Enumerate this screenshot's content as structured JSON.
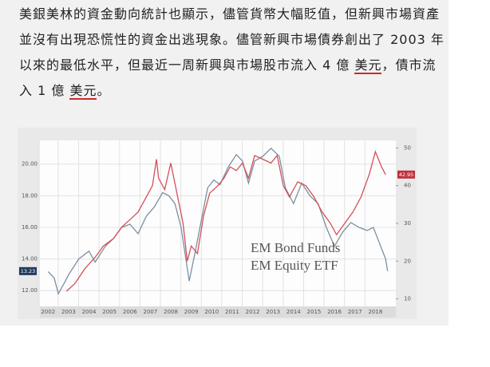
{
  "article": {
    "segments": [
      {
        "text": "美銀美林的資金動向統計也顯示，儘管貨幣大幅貶值，但新興市場資產並沒有出現恐慌性的資金出逃現象。儘管新興市場債券創出了 2003 年以來的最低水平，但最近一周新興與市場股市流入 4 億 "
      },
      {
        "link": "美元"
      },
      {
        "text": "，債市流入 1 億 "
      },
      {
        "link": "美元"
      },
      {
        "text": "。"
      }
    ]
  },
  "chart_data": {
    "type": "line",
    "xticks": [
      2002,
      2003,
      2004,
      2005,
      2006,
      2007,
      2008,
      2009,
      2010,
      2011,
      2012,
      2013,
      2014,
      2015,
      2016,
      2017,
      2018
    ],
    "xlim": [
      2001.6,
      2019.0
    ],
    "ylim": [
      11,
      21.5
    ],
    "yticks": [
      {
        "value": 12,
        "label": "12.00"
      },
      {
        "value": 14,
        "label": "14.00"
      },
      {
        "value": 16,
        "label": "16.00"
      },
      {
        "value": 18,
        "label": "18.00"
      },
      {
        "value": 20,
        "label": "20.00"
      }
    ],
    "y2lim": [
      8,
      52
    ],
    "y2ticks": [
      10,
      20,
      30,
      40,
      50
    ],
    "grid": true,
    "series": [
      {
        "name": "EM Equity ETF",
        "color": "#7d8fa0",
        "label_color": "#2a3b8f",
        "axis": "y",
        "x": [
          2002.0,
          2002.3,
          2002.5,
          2002.8,
          2003.0,
          2003.5,
          2004.0,
          2004.3,
          2004.8,
          2005.2,
          2005.6,
          2006.0,
          2006.4,
          2006.8,
          2007.2,
          2007.6,
          2007.9,
          2008.2,
          2008.5,
          2008.9,
          2009.2,
          2009.5,
          2009.8,
          2010.1,
          2010.4,
          2010.8,
          2011.2,
          2011.5,
          2011.8,
          2012.1,
          2012.5,
          2012.9,
          2013.3,
          2013.6,
          2014.0,
          2014.4,
          2014.8,
          2015.2,
          2015.6,
          2016.0,
          2016.4,
          2016.8,
          2017.2,
          2017.6,
          2017.9,
          2018.2,
          2018.5,
          2018.6
        ],
        "values": [
          13.2,
          12.8,
          11.8,
          12.5,
          13.0,
          14.0,
          14.5,
          13.8,
          14.8,
          15.3,
          16.0,
          16.2,
          15.6,
          16.7,
          17.3,
          18.2,
          18.0,
          17.5,
          16.0,
          12.6,
          14.5,
          16.5,
          18.5,
          19.0,
          18.7,
          19.8,
          20.6,
          20.2,
          18.8,
          20.2,
          20.5,
          21.0,
          20.5,
          18.5,
          17.5,
          18.8,
          18.0,
          17.5,
          16.0,
          14.8,
          15.7,
          16.3,
          16.0,
          15.8,
          16.0,
          15.0,
          14.0,
          13.23
        ]
      },
      {
        "name": "EM Bond Funds",
        "color": "#d2505a",
        "label_color": "#c4202b",
        "axis": "y2",
        "x": [
          2002.9,
          2003.3,
          2003.8,
          2004.3,
          2004.7,
          2005.2,
          2005.6,
          2006.0,
          2006.4,
          2006.8,
          2007.1,
          2007.3,
          2007.4,
          2007.7,
          2008.0,
          2008.3,
          2008.6,
          2008.8,
          2009.0,
          2009.3,
          2009.6,
          2009.9,
          2010.3,
          2010.6,
          2010.9,
          2011.2,
          2011.5,
          2011.8,
          2012.1,
          2012.5,
          2012.9,
          2013.2,
          2013.5,
          2013.8,
          2014.2,
          2014.6,
          2015.0,
          2015.4,
          2015.8,
          2016.1,
          2016.5,
          2016.9,
          2017.3,
          2017.7,
          2018.0,
          2018.3,
          2018.5
        ],
        "values": [
          12,
          14,
          18,
          21,
          24,
          26,
          29,
          31,
          33,
          37,
          40,
          47,
          42,
          39,
          46,
          38,
          30,
          20,
          24,
          22,
          32,
          38,
          40,
          42,
          45,
          44,
          46,
          42,
          48,
          47,
          46,
          48,
          40,
          37,
          41,
          40,
          37,
          33,
          30,
          27,
          30,
          33,
          37,
          43,
          49,
          45,
          42.95
        ]
      }
    ]
  }
}
